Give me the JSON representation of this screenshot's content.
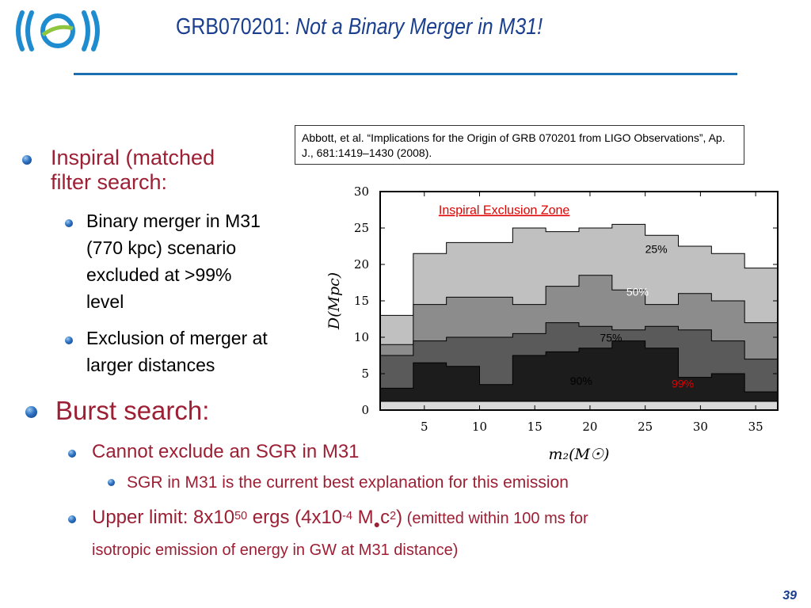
{
  "slide": {
    "title_plain": "GRB070201: ",
    "title_italic": "Not a Binary Merger in M31!",
    "reference": "Abbott, et al. “Implications for the Origin of GRB 070201 from LIGO Observations”, Ap. J., 681:1419–1430 (2008).",
    "bullets": {
      "inspiral_title_line1": "Inspiral (matched",
      "inspiral_title_line2": "filter search:",
      "inspiral_sub1_line1": "Binary merger in M31",
      "inspiral_sub1_line2": "(770 kpc) scenario",
      "inspiral_sub1_line3": "excluded at >99%",
      "inspiral_sub1_line4": "level",
      "inspiral_sub2_line1": "Exclusion of merger at",
      "inspiral_sub2_line2": "larger distances",
      "burst_title": "Burst search:",
      "burst_sub1": "Cannot exclude an SGR in M31",
      "burst_sub1_sub": "SGR in M31 is the current best explanation for this emission",
      "upper_prefix": "Upper limit: 8x10",
      "upper_exp1": "50",
      "upper_mid": " ergs (4x10",
      "upper_exp2": "-4",
      "upper_msun": " M",
      "upper_c": "c",
      "upper_exp3": "2",
      "upper_close": ")",
      "upper_note_a": " (emitted within 100 ms for",
      "upper_note_b": "isotropic emission of energy in GW at M31 distance)"
    },
    "page_number": "39"
  },
  "chart_data": {
    "type": "area",
    "title": "Inspiral Exclusion Zone",
    "xlabel": "m₂(M☉)",
    "ylabel": "D(Mpc)",
    "xlim": [
      1,
      37
    ],
    "ylim": [
      0,
      30
    ],
    "xticks": [
      5,
      10,
      15,
      20,
      25,
      30,
      35
    ],
    "yticks": [
      0,
      5,
      10,
      15,
      20,
      25,
      30
    ],
    "x_edges": [
      1,
      4,
      7,
      10,
      13,
      16,
      19,
      22,
      25,
      28,
      31,
      34,
      37
    ],
    "series": [
      {
        "name": "25%",
        "values": [
          13.0,
          21.5,
          23.0,
          23.0,
          25.0,
          24.5,
          25.0,
          25.5,
          24.0,
          22.5,
          21.5,
          19.5
        ],
        "color": "#c0c0c0"
      },
      {
        "name": "50%",
        "values": [
          9.0,
          14.5,
          15.5,
          15.5,
          14.5,
          17.0,
          18.5,
          16.5,
          14.5,
          16.0,
          15.0,
          12.0
        ],
        "color": "#8c8c8c"
      },
      {
        "name": "75%",
        "values": [
          7.5,
          9.5,
          10.0,
          10.0,
          10.5,
          12.0,
          11.5,
          11.0,
          11.5,
          11.0,
          9.5,
          7.0
        ],
        "color": "#5a5a5a"
      },
      {
        "name": "90%",
        "values": [
          3.0,
          6.5,
          6.0,
          3.5,
          7.5,
          8.0,
          8.5,
          9.5,
          8.5,
          4.5,
          5.0,
          2.5
        ],
        "color": "#1c1c1c"
      }
    ],
    "band_labels": [
      "25%",
      "50%",
      "75%",
      "90%",
      "99%"
    ],
    "band_label_colors": [
      "#000000",
      "#ffffff",
      "#000000",
      "#000000",
      "#e00000"
    ],
    "grid": false
  }
}
